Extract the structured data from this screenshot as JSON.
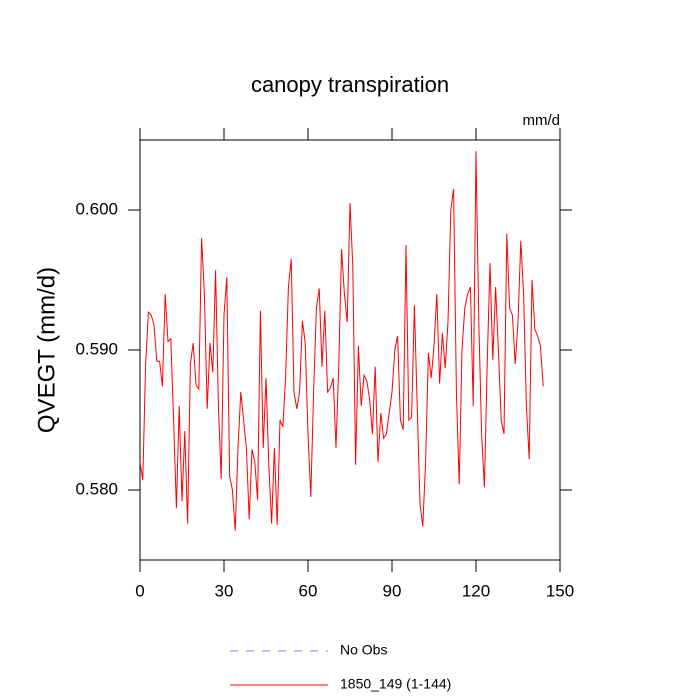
{
  "chart_data": {
    "type": "line",
    "title": "canopy transpiration",
    "units": "mm/d",
    "ylabel": "QVEGT  (mm/d)",
    "x": [
      0,
      1,
      2,
      3,
      4,
      5,
      6,
      7,
      8,
      9,
      10,
      11,
      12,
      13,
      14,
      15,
      16,
      17,
      18,
      19,
      20,
      21,
      22,
      23,
      24,
      25,
      26,
      27,
      28,
      29,
      30,
      31,
      32,
      33,
      34,
      35,
      36,
      37,
      38,
      39,
      40,
      41,
      42,
      43,
      44,
      45,
      46,
      47,
      48,
      49,
      50,
      51,
      52,
      53,
      54,
      55,
      56,
      57,
      58,
      59,
      60,
      61,
      62,
      63,
      64,
      65,
      66,
      67,
      68,
      69,
      70,
      71,
      72,
      73,
      74,
      75,
      76,
      77,
      78,
      79,
      80,
      81,
      82,
      83,
      84,
      85,
      86,
      87,
      88,
      89,
      90,
      91,
      92,
      93,
      94,
      95,
      96,
      97,
      98,
      99,
      100,
      101,
      102,
      103,
      104,
      105,
      106,
      107,
      108,
      109,
      110,
      111,
      112,
      113,
      114,
      115,
      116,
      117,
      118,
      119,
      120,
      121,
      122,
      123,
      124,
      125,
      126,
      127,
      128,
      129,
      130,
      131,
      132,
      133,
      134,
      135,
      136,
      137,
      138,
      139,
      140,
      141,
      142,
      143,
      144
    ],
    "series": [
      {
        "name": "1850_149 (1-144)",
        "color": "#ff0000",
        "values": [
          0.582,
          0.5807,
          0.589,
          0.5927,
          0.5925,
          0.5918,
          0.5892,
          0.5892,
          0.5874,
          0.594,
          0.5906,
          0.5908,
          0.585,
          0.5787,
          0.586,
          0.5792,
          0.5842,
          0.5776,
          0.589,
          0.5905,
          0.5875,
          0.5872,
          0.598,
          0.594,
          0.5858,
          0.5905,
          0.5884,
          0.5957,
          0.586,
          0.5808,
          0.5925,
          0.5952,
          0.581,
          0.58,
          0.5771,
          0.583,
          0.587,
          0.585,
          0.583,
          0.5779,
          0.5829,
          0.582,
          0.5793,
          0.5928,
          0.583,
          0.588,
          0.5818,
          0.5776,
          0.583,
          0.5775,
          0.585,
          0.5845,
          0.588,
          0.5945,
          0.5965,
          0.587,
          0.5858,
          0.587,
          0.5921,
          0.5905,
          0.584,
          0.5795,
          0.587,
          0.593,
          0.5944,
          0.5888,
          0.5928,
          0.587,
          0.5873,
          0.588,
          0.583,
          0.589,
          0.5972,
          0.594,
          0.592,
          0.6005,
          0.596,
          0.5818,
          0.5903,
          0.586,
          0.5882,
          0.5878,
          0.5865,
          0.584,
          0.5888,
          0.582,
          0.5855,
          0.5837,
          0.584,
          0.5855,
          0.587,
          0.59,
          0.591,
          0.585,
          0.5843,
          0.5975,
          0.585,
          0.5852,
          0.5932,
          0.586,
          0.579,
          0.5774,
          0.582,
          0.5898,
          0.588,
          0.5903,
          0.594,
          0.5876,
          0.5912,
          0.5887,
          0.592,
          0.6,
          0.6015,
          0.587,
          0.5804,
          0.59,
          0.593,
          0.594,
          0.5945,
          0.586,
          0.6042,
          0.592,
          0.584,
          0.5802,
          0.589,
          0.5962,
          0.5893,
          0.5945,
          0.59,
          0.585,
          0.584,
          0.5983,
          0.593,
          0.5925,
          0.589,
          0.592,
          0.5978,
          0.594,
          0.586,
          0.5822,
          0.595,
          0.5915,
          0.591,
          0.5903,
          0.5874
        ]
      }
    ],
    "reference_lines": [
      {
        "name": "No Obs",
        "color": "#7f7fff",
        "dash": "dashed"
      }
    ],
    "xlim": [
      0,
      150
    ],
    "xticks": [
      0,
      30,
      60,
      90,
      120,
      150
    ],
    "ylim": [
      0.575,
      0.605
    ],
    "yticks": [
      {
        "value": 0.58,
        "label": "0.580"
      },
      {
        "value": 0.59,
        "label": "0.590"
      },
      {
        "value": 0.6,
        "label": "0.600"
      }
    ]
  }
}
